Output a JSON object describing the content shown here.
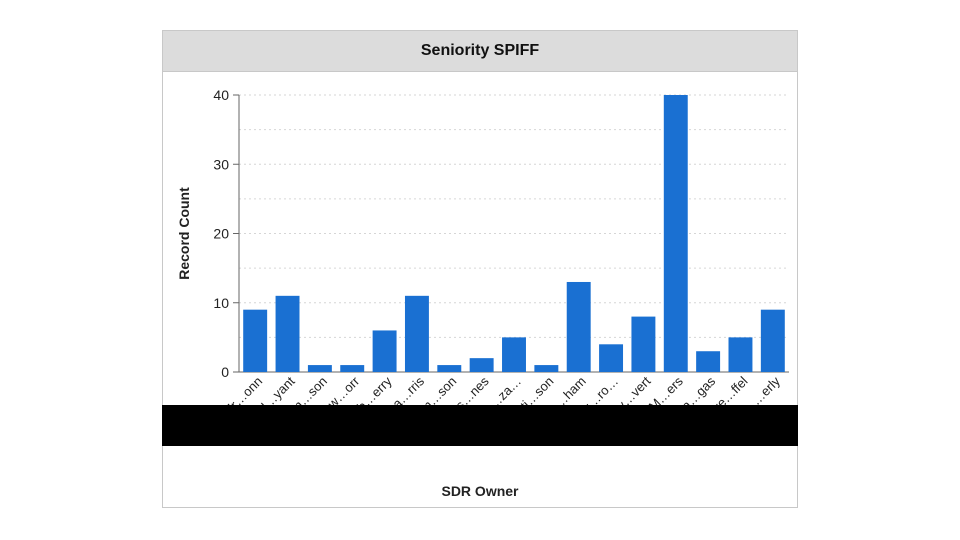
{
  "chart_data": {
    "type": "bar",
    "title": "Seniority SPIFF",
    "xlabel": "SDR Owner",
    "ylabel": "Record Count",
    "ylim": [
      0,
      40
    ],
    "yticks": [
      0,
      10,
      20,
      30,
      40
    ],
    "grid": true,
    "bar_color": "#1a70d2",
    "categories": [
      "Andr…onn",
      "Brad…yant",
      "Con…son",
      "Craw…orr",
      "Deb…erry",
      "Dea…rris",
      "Jam…son",
      "Jess…nes",
      "…za…",
      "Justi…son",
      "Kath…ham",
      "Laur…ro…",
      "Ly…vert",
      "M…ers",
      "Pa…gas",
      "Tre…ffel",
      "…erly"
    ],
    "values": [
      9,
      11,
      1,
      1,
      6,
      11,
      1,
      2,
      5,
      1,
      13,
      4,
      8,
      40,
      3,
      5,
      9
    ]
  },
  "colors": {
    "header_bg": "#dcdcdc",
    "redaction": "#000000"
  }
}
